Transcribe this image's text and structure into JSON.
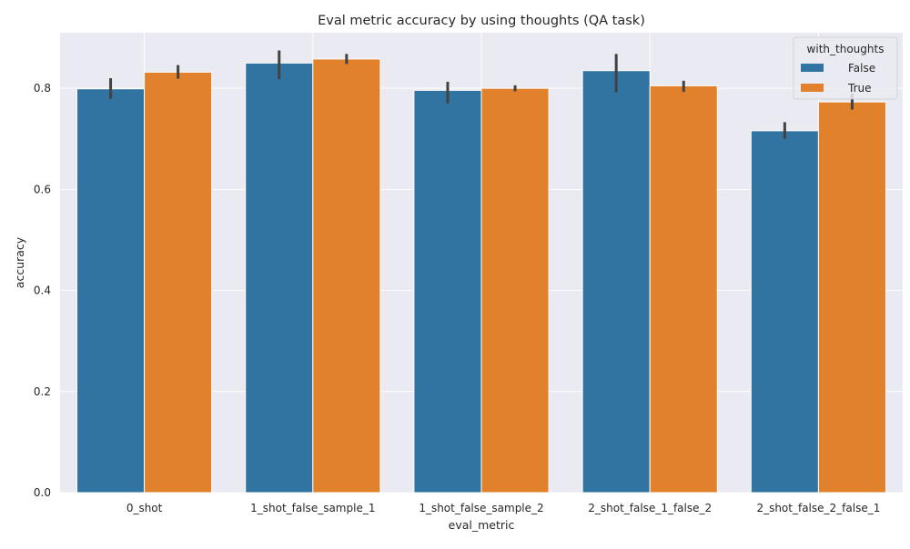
{
  "chart_data": {
    "type": "bar",
    "title": "Eval metric accuracy by using thoughts (QA task)",
    "xlabel": "eval_metric",
    "ylabel": "accuracy",
    "ylim": [
      0,
      0.91
    ],
    "yticks": [
      0.0,
      0.2,
      0.4,
      0.6,
      0.8
    ],
    "ytick_labels": [
      "0.0",
      "0.2",
      "0.4",
      "0.6",
      "0.8"
    ],
    "grid": true,
    "categories": [
      "0_shot",
      "1_shot_false_sample_1",
      "1_shot_false_sample_2",
      "2_shot_false_1_false_2",
      "2_shot_false_2_false_1"
    ],
    "legend": {
      "title": "with_thoughts",
      "position": "top-right"
    },
    "series": [
      {
        "name": "False",
        "color": "#3274a1",
        "values": [
          0.799,
          0.85,
          0.796,
          0.835,
          0.716
        ],
        "err_low": [
          0.779,
          0.818,
          0.77,
          0.792,
          0.7
        ],
        "err_high": [
          0.82,
          0.875,
          0.813,
          0.868,
          0.733
        ]
      },
      {
        "name": "True",
        "color": "#e1812c",
        "values": [
          0.832,
          0.858,
          0.8,
          0.805,
          0.773
        ],
        "err_low": [
          0.819,
          0.848,
          0.794,
          0.793,
          0.758
        ],
        "err_high": [
          0.846,
          0.868,
          0.806,
          0.815,
          0.79
        ]
      }
    ],
    "colors": {
      "plot_background": "#eaeaf2",
      "grid": "#ffffff",
      "error_bar": "#424242",
      "text": "#262626"
    }
  }
}
